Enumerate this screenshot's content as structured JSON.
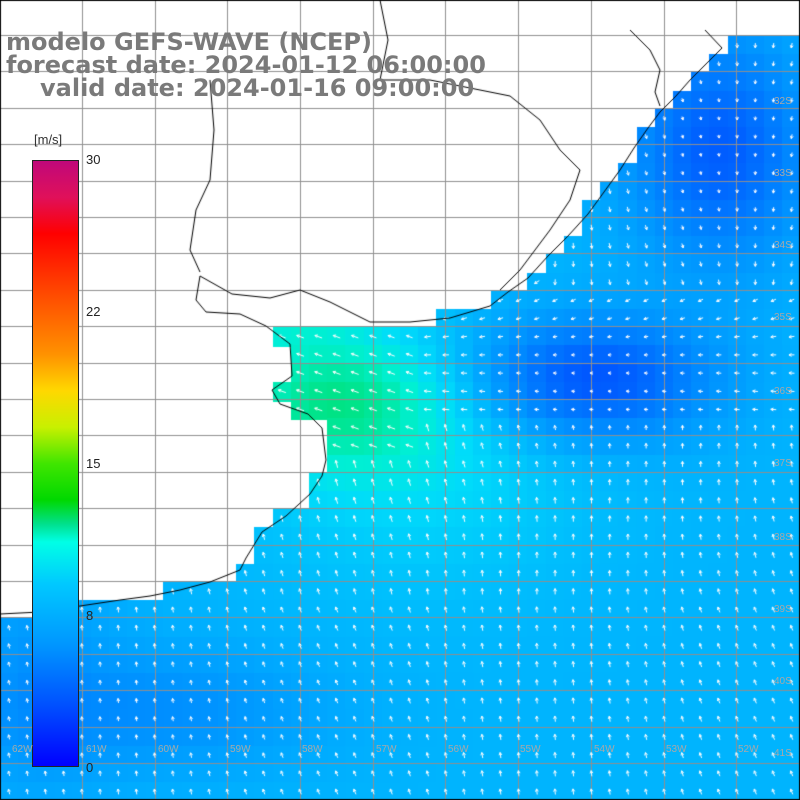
{
  "title": {
    "model": "modelo GEFS-WAVE (NCEP)",
    "forecast": "forecast date: 2024-01-12 06:00:00",
    "valid": "valid date: 2024-01-16 09:00:00"
  },
  "colorbar": {
    "unit": "[m/s]",
    "ticks": [
      "30",
      "22",
      "15",
      "8",
      "0"
    ],
    "colors": [
      "#c0087a",
      "#ff0000",
      "#ff9200",
      "#ffd800",
      "#00d800",
      "#00ffe6",
      "#0096ff",
      "#0000ff"
    ]
  },
  "latitude_labels": [
    "32S",
    "33S",
    "34S",
    "35S",
    "36S",
    "37S",
    "38S",
    "39S",
    "40S",
    "41S"
  ],
  "longitude_labels": [
    "62W",
    "61W",
    "60W",
    "59W",
    "58W",
    "57W",
    "56W",
    "55W",
    "54W",
    "53W",
    "52W"
  ]
}
